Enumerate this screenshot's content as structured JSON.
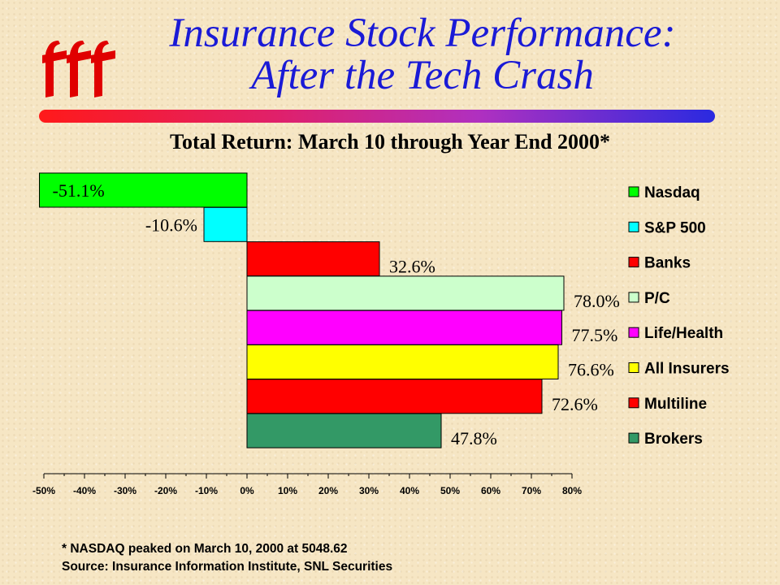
{
  "header": {
    "title_line1": "Insurance Stock Performance:",
    "title_line2": "After the Tech Crash",
    "subtitle": "Total Return: March 10 through Year End 2000*"
  },
  "footnotes": {
    "note": "* NASDAQ peaked on March 10, 2000 at 5048.62",
    "source": "Source:  Insurance Information Institute, SNL Securities"
  },
  "colors": {
    "title": "#1a1ad6",
    "Nasdaq": "#00ff00",
    "S&P 500": "#00ffff",
    "Banks": "#ff0000",
    "P/C": "#ccffcc",
    "Life/Health": "#ff00ff",
    "All Insurers": "#ffff00",
    "Multiline": "#ff0000",
    "Brokers": "#339966"
  },
  "chart_data": {
    "type": "bar",
    "orientation": "horizontal",
    "categories": [
      "Nasdaq",
      "S&P 500",
      "Banks",
      "P/C",
      "Life/Health",
      "All Insurers",
      "Multiline",
      "Brokers"
    ],
    "values": [
      -51.1,
      -10.6,
      32.6,
      78.0,
      77.5,
      76.6,
      72.6,
      47.8
    ],
    "data_labels": [
      "-51.1%",
      "-10.6%",
      "32.6%",
      "78.0%",
      "77.5%",
      "76.6%",
      "72.6%",
      "47.8%"
    ],
    "x_ticks": [
      "-50%",
      "-40%",
      "-30%",
      "-20%",
      "-10%",
      "0%",
      "10%",
      "20%",
      "30%",
      "40%",
      "50%",
      "60%",
      "70%",
      "80%"
    ],
    "xlim": [
      -50,
      80
    ],
    "legend_position": "right",
    "grid": false
  }
}
